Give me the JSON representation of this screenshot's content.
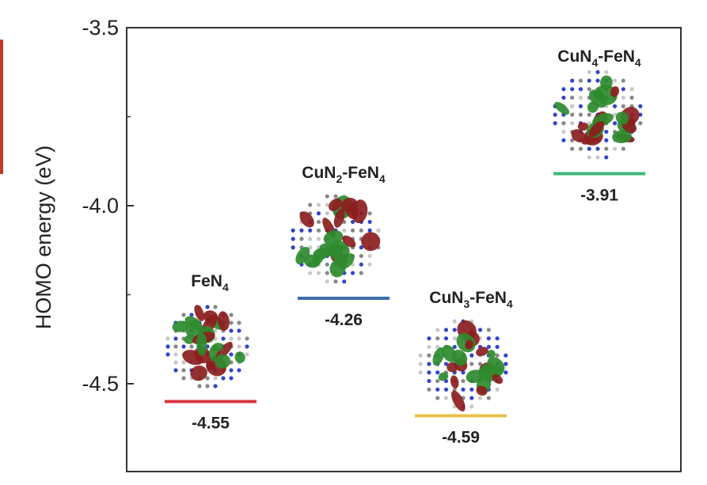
{
  "chart_data": {
    "type": "scatter",
    "ylabel": "HOMO energy (eV)",
    "ylim": [
      -4.75,
      -3.5
    ],
    "yticks": [
      -3.5,
      -4.0,
      -4.5
    ],
    "ytick_labels": [
      "-3.5",
      "-4.0",
      "-4.5"
    ],
    "categories": [
      {
        "main": "FeN",
        "sub": "4",
        "rest": ""
      },
      {
        "main": "CuN",
        "sub": "2",
        "rest": "-FeN",
        "sub2": "4"
      },
      {
        "main": "CuN",
        "sub": "3",
        "rest": "-FeN",
        "sub2": "4"
      },
      {
        "main": "CuN",
        "sub": "4",
        "rest": "-FeN",
        "sub2": "4"
      }
    ],
    "values": [
      -4.55,
      -4.26,
      -4.59,
      -3.91
    ],
    "value_labels": [
      "-4.55",
      "-4.26",
      "-4.59",
      "-3.91"
    ],
    "colors": [
      "#d9363e",
      "#3a6ea5",
      "#e8c04a",
      "#3cb878"
    ]
  }
}
